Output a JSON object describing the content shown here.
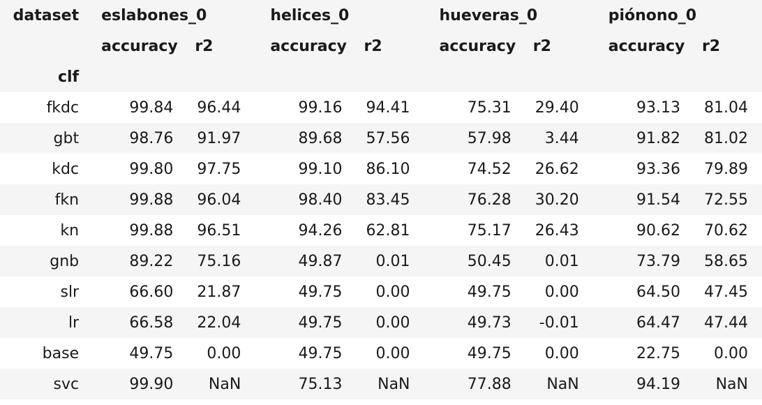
{
  "table": {
    "corner_label": "dataset",
    "index_name": "clf",
    "datasets": [
      "eslabones_0",
      "helices_0",
      "hueveras_0",
      "piónono_0"
    ],
    "metric_labels": [
      "accuracy",
      "r2"
    ],
    "rows": [
      {
        "label": "fkdc",
        "values": [
          "99.84",
          "96.44",
          "99.16",
          "94.41",
          "75.31",
          "29.40",
          "93.13",
          "81.04"
        ]
      },
      {
        "label": "gbt",
        "values": [
          "98.76",
          "91.97",
          "89.68",
          "57.56",
          "57.98",
          "3.44",
          "91.82",
          "81.02"
        ]
      },
      {
        "label": "kdc",
        "values": [
          "99.80",
          "97.75",
          "99.10",
          "86.10",
          "74.52",
          "26.62",
          "93.36",
          "79.89"
        ]
      },
      {
        "label": "fkn",
        "values": [
          "99.88",
          "96.04",
          "98.40",
          "83.45",
          "76.28",
          "30.20",
          "91.54",
          "72.55"
        ]
      },
      {
        "label": "kn",
        "values": [
          "99.88",
          "96.51",
          "94.26",
          "62.81",
          "75.17",
          "26.43",
          "90.62",
          "70.62"
        ]
      },
      {
        "label": "gnb",
        "values": [
          "89.22",
          "75.16",
          "49.87",
          "0.01",
          "50.45",
          "0.01",
          "73.79",
          "58.65"
        ]
      },
      {
        "label": "slr",
        "values": [
          "66.60",
          "21.87",
          "49.75",
          "0.00",
          "49.75",
          "0.00",
          "64.50",
          "47.45"
        ]
      },
      {
        "label": "lr",
        "values": [
          "66.58",
          "22.04",
          "49.75",
          "0.00",
          "49.73",
          "-0.01",
          "64.47",
          "47.44"
        ]
      },
      {
        "label": "base",
        "values": [
          "49.75",
          "0.00",
          "49.75",
          "0.00",
          "49.75",
          "0.00",
          "22.75",
          "0.00"
        ]
      },
      {
        "label": "svc",
        "values": [
          "99.90",
          "NaN",
          "75.13",
          "NaN",
          "77.88",
          "NaN",
          "94.19",
          "NaN"
        ]
      }
    ]
  }
}
